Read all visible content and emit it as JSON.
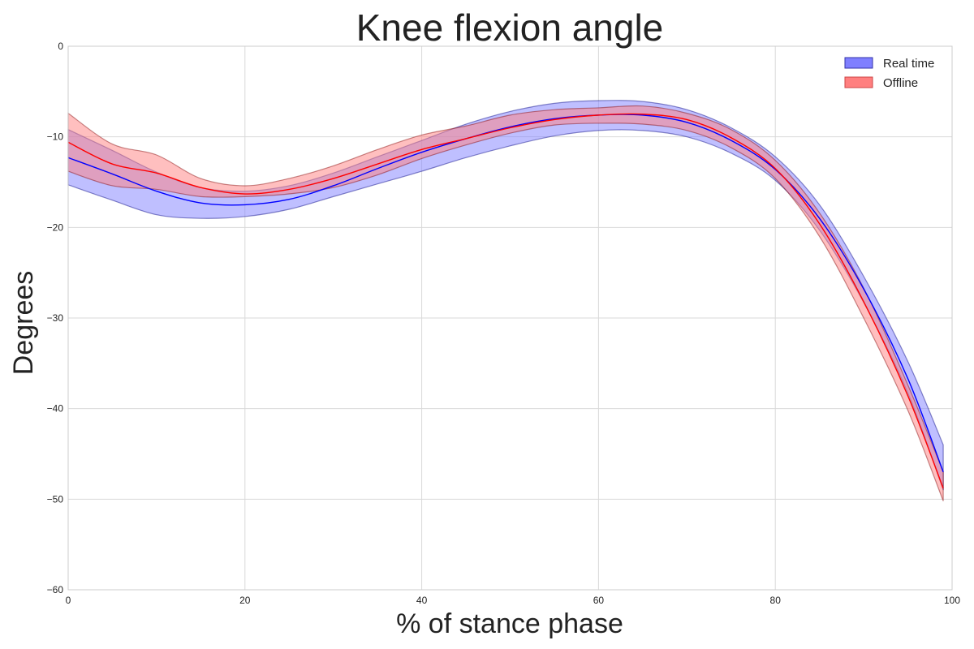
{
  "chart_data": {
    "type": "area",
    "title": "Knee flexion angle",
    "xlabel": "% of stance phase",
    "ylabel": "Degrees",
    "xlim": [
      0,
      100
    ],
    "ylim": [
      -60,
      0
    ],
    "xticks": [
      0,
      20,
      40,
      60,
      80,
      100
    ],
    "yticks": [
      0,
      -10,
      -20,
      -30,
      -40,
      -50,
      -60
    ],
    "grid": true,
    "legend_position": "top-right",
    "x": [
      0,
      5,
      10,
      15,
      20,
      25,
      30,
      35,
      40,
      45,
      50,
      55,
      60,
      65,
      70,
      75,
      80,
      85,
      90,
      95,
      99
    ],
    "series": [
      {
        "name": "Real time",
        "color": "#0000ff",
        "band_color": "#7f7fff",
        "mean": [
          -12.3,
          -14.1,
          -16.0,
          -17.3,
          -17.5,
          -16.9,
          -15.4,
          -13.5,
          -11.7,
          -10.2,
          -8.9,
          -8.0,
          -7.6,
          -7.6,
          -8.4,
          -10.4,
          -13.6,
          -19.0,
          -26.8,
          -36.7,
          -47.0
        ],
        "lower": [
          -15.3,
          -17.0,
          -18.6,
          -19.0,
          -18.8,
          -18.0,
          -16.6,
          -15.2,
          -13.8,
          -12.3,
          -11.0,
          -9.9,
          -9.3,
          -9.3,
          -10.0,
          -11.8,
          -14.8,
          -20.3,
          -28.3,
          -38.3,
          -49.0
        ],
        "upper": [
          -9.2,
          -11.5,
          -13.9,
          -15.6,
          -16.0,
          -15.4,
          -14.0,
          -12.2,
          -10.4,
          -8.6,
          -7.2,
          -6.3,
          -6.0,
          -6.1,
          -7.0,
          -9.0,
          -12.2,
          -17.5,
          -25.4,
          -34.8,
          -44.0
        ]
      },
      {
        "name": "Offline",
        "color": "#ff0000",
        "band_color": "#ff7f7f",
        "mean": [
          -10.6,
          -13.0,
          -14.0,
          -15.6,
          -16.3,
          -15.8,
          -14.6,
          -13.0,
          -11.4,
          -10.2,
          -9.0,
          -8.1,
          -7.6,
          -7.5,
          -8.1,
          -10.1,
          -13.5,
          -19.6,
          -28.2,
          -38.6,
          -48.8
        ],
        "lower": [
          -13.8,
          -15.4,
          -15.8,
          -16.6,
          -16.6,
          -16.3,
          -15.6,
          -14.2,
          -12.4,
          -10.9,
          -9.6,
          -8.7,
          -8.5,
          -8.6,
          -9.3,
          -11.2,
          -14.6,
          -21.0,
          -30.0,
          -40.2,
          -50.2
        ],
        "upper": [
          -7.4,
          -10.8,
          -12.0,
          -14.6,
          -15.4,
          -14.6,
          -13.2,
          -11.4,
          -9.8,
          -8.8,
          -7.6,
          -7.0,
          -6.8,
          -6.6,
          -7.4,
          -9.2,
          -12.6,
          -18.4,
          -26.7,
          -37.4,
          -47.0
        ]
      }
    ]
  }
}
